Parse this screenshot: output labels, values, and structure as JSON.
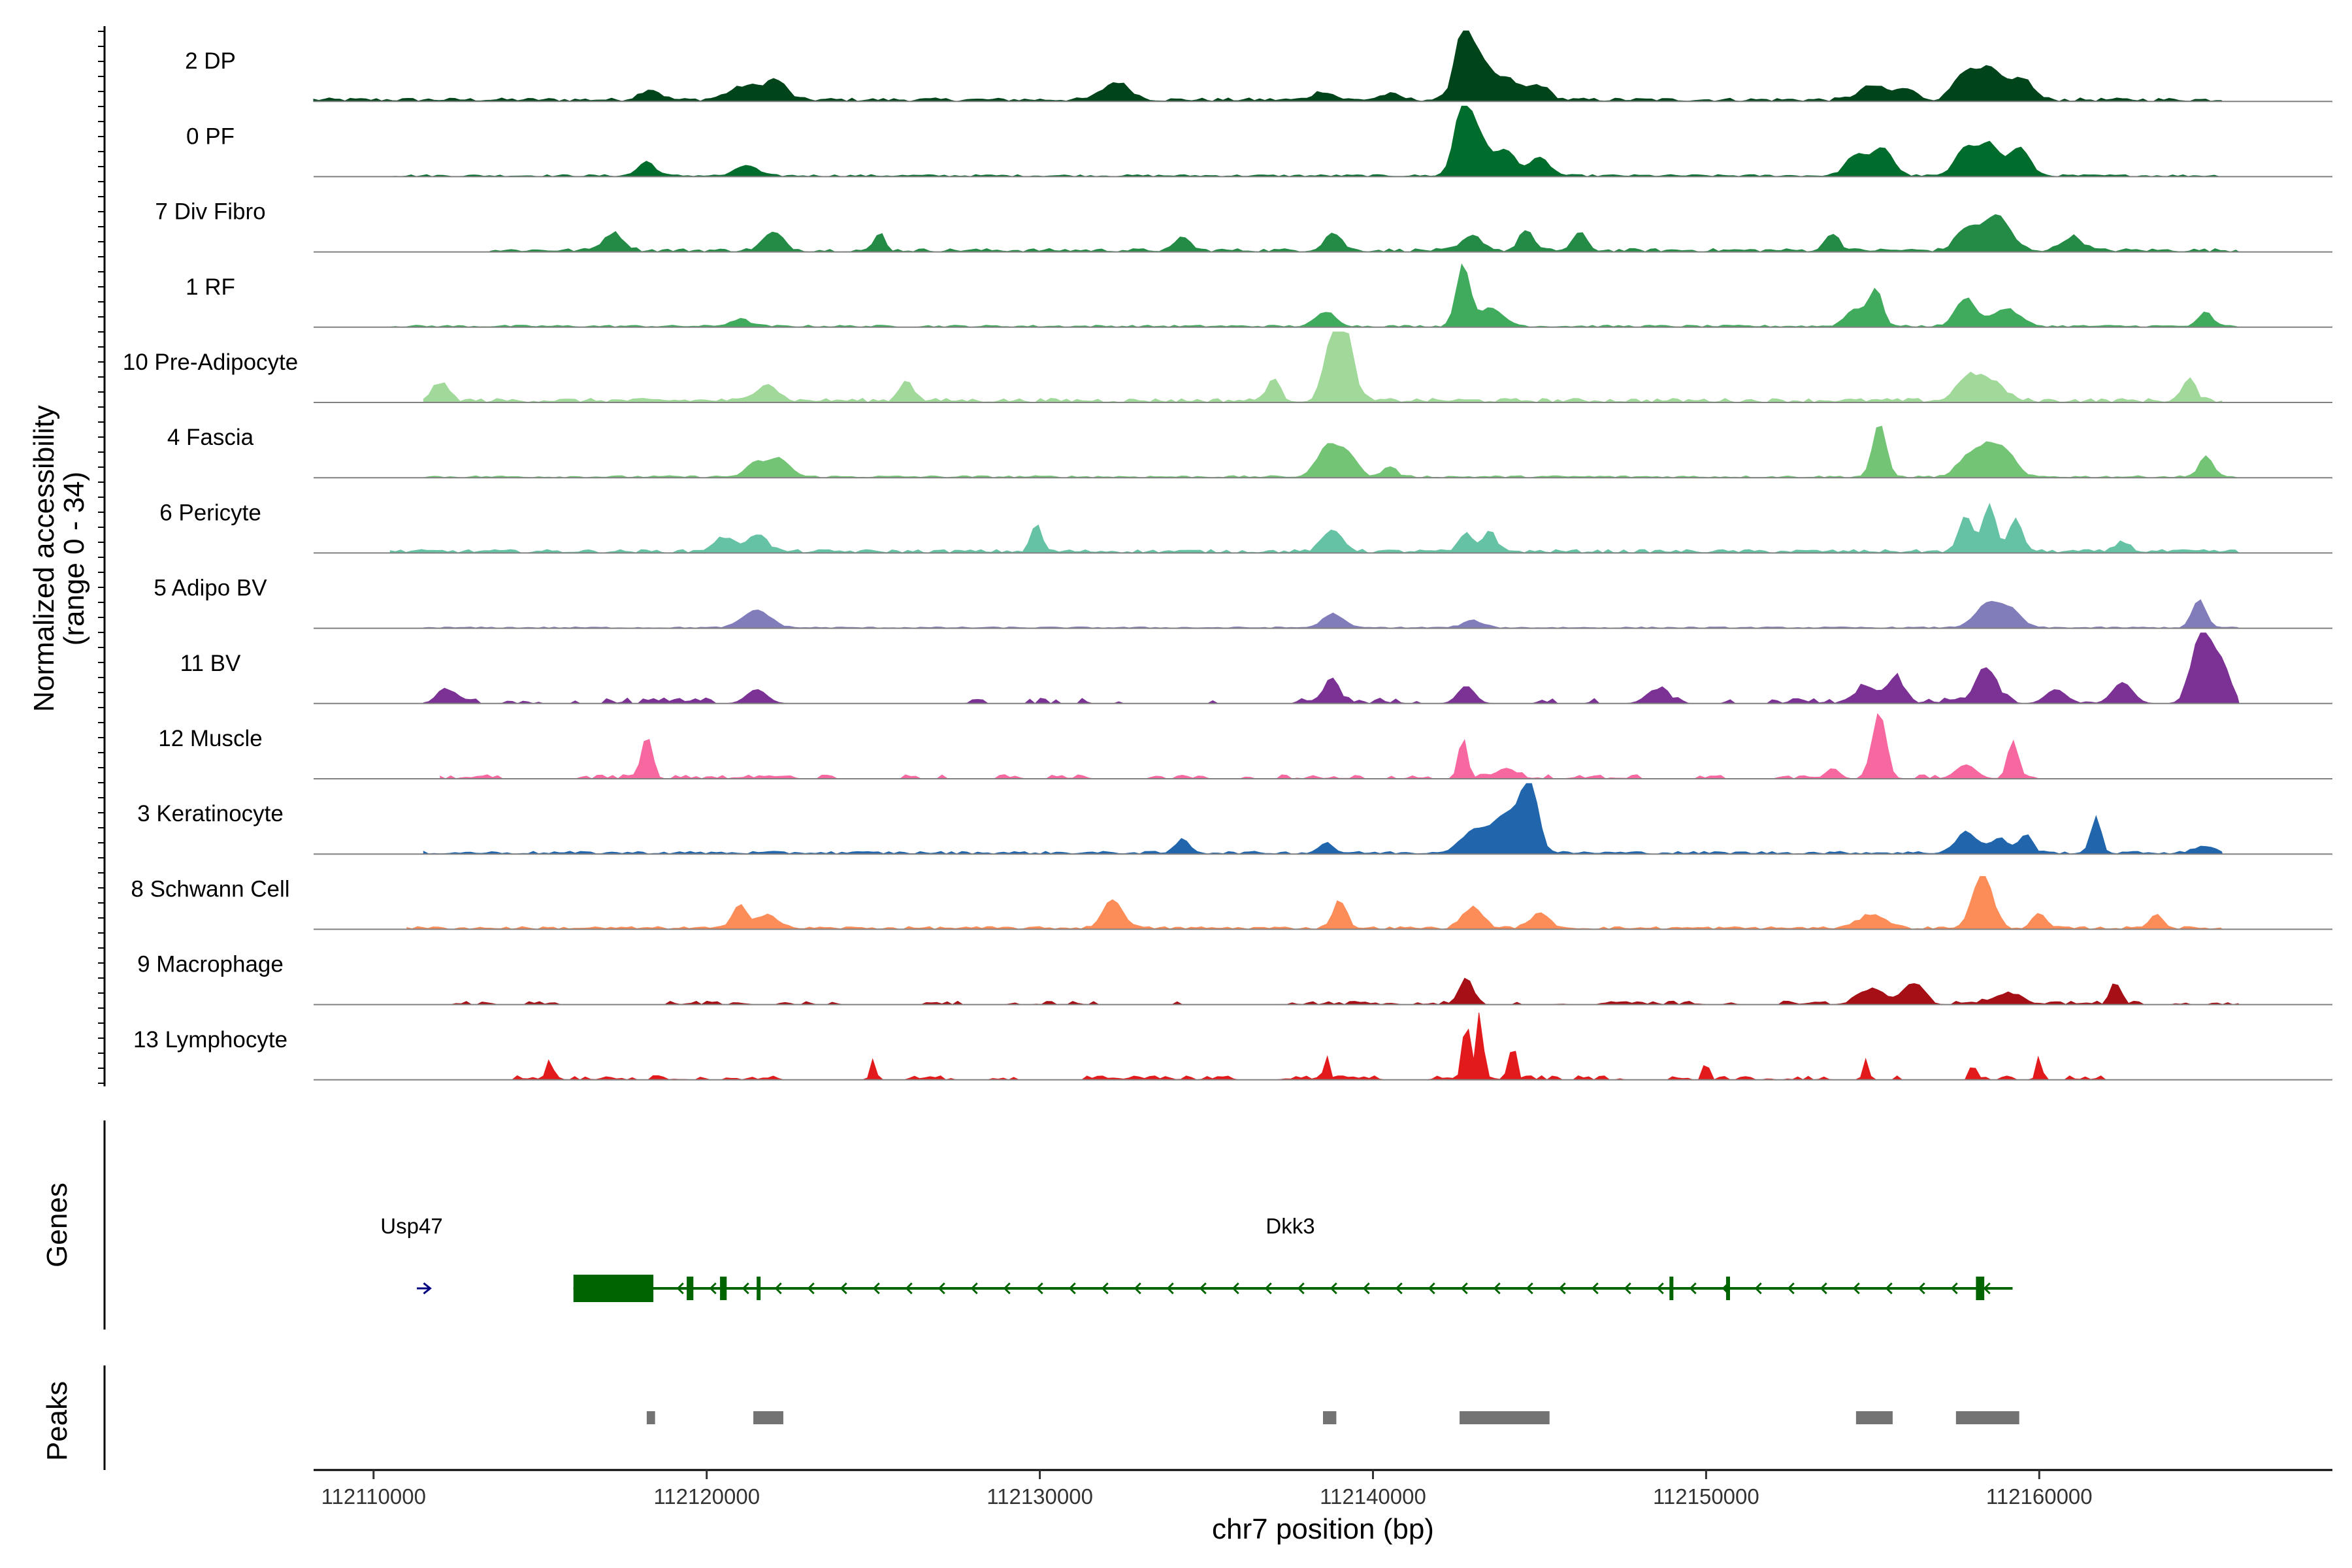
{
  "chart_data": {
    "type": "area",
    "title": "",
    "coverage_ylabel": "Normalized accessibility\n(range 0 - 34)",
    "y_range": [
      0,
      34
    ],
    "xlabel": "chr7 position (bp)",
    "xlim": [
      112108200,
      112168800
    ],
    "x_ticks": [
      112110000,
      112120000,
      112130000,
      112140000,
      112150000,
      112160000
    ],
    "x_tick_labels": [
      "112110000",
      "112120000",
      "112130000",
      "112140000",
      "112150000",
      "112160000"
    ],
    "tracks": [
      {
        "name": "2 DP",
        "color": "#00441b",
        "range": [
          112108200,
          112165500
        ],
        "noise": 0.05,
        "peaks": [
          [
            112118300,
            0.15,
            300
          ],
          [
            112121200,
            0.2,
            500
          ],
          [
            112122100,
            0.25,
            300
          ],
          [
            112132300,
            0.25,
            400
          ],
          [
            112138500,
            0.12,
            300
          ],
          [
            112140500,
            0.08,
            300
          ],
          [
            112142700,
            0.95,
            250
          ],
          [
            112143200,
            0.5,
            300
          ],
          [
            112144000,
            0.3,
            400
          ],
          [
            112145000,
            0.2,
            300
          ],
          [
            112155000,
            0.2,
            400
          ],
          [
            112156000,
            0.15,
            300
          ],
          [
            112157700,
            0.35,
            300
          ],
          [
            112158500,
            0.45,
            400
          ],
          [
            112159500,
            0.3,
            300
          ]
        ]
      },
      {
        "name": "0 PF",
        "color": "#006d2c",
        "range": [
          112110500,
          112165500
        ],
        "noise": 0.03,
        "peaks": [
          [
            112118200,
            0.2,
            250
          ],
          [
            112121200,
            0.15,
            300
          ],
          [
            112142700,
            1.0,
            250
          ],
          [
            112143200,
            0.5,
            300
          ],
          [
            112144000,
            0.35,
            300
          ],
          [
            112145000,
            0.25,
            300
          ],
          [
            112154500,
            0.3,
            300
          ],
          [
            112155300,
            0.4,
            300
          ],
          [
            112157800,
            0.4,
            300
          ],
          [
            112158500,
            0.45,
            300
          ],
          [
            112159400,
            0.4,
            300
          ]
        ]
      },
      {
        "name": "7 Div Fibro",
        "color": "#238b45",
        "range": [
          112113500,
          112166000
        ],
        "noise": 0.05,
        "peaks": [
          [
            112117200,
            0.25,
            300
          ],
          [
            112122000,
            0.25,
            300
          ],
          [
            112125200,
            0.25,
            150
          ],
          [
            112134300,
            0.2,
            200
          ],
          [
            112138800,
            0.25,
            250
          ],
          [
            112143000,
            0.2,
            300
          ],
          [
            112144600,
            0.3,
            200
          ],
          [
            112146200,
            0.25,
            200
          ],
          [
            112153800,
            0.25,
            200
          ],
          [
            112157800,
            0.3,
            300
          ],
          [
            112158700,
            0.5,
            400
          ],
          [
            112161000,
            0.2,
            300
          ]
        ]
      },
      {
        "name": "1 RF",
        "color": "#41ab5d",
        "range": [
          112110500,
          112166000
        ],
        "noise": 0.03,
        "peaks": [
          [
            112121000,
            0.1,
            300
          ],
          [
            112138600,
            0.2,
            300
          ],
          [
            112142700,
            0.85,
            200
          ],
          [
            112143500,
            0.25,
            400
          ],
          [
            112155100,
            0.5,
            200
          ],
          [
            112154500,
            0.25,
            300
          ],
          [
            112157800,
            0.4,
            300
          ],
          [
            112159000,
            0.25,
            400
          ],
          [
            112165000,
            0.2,
            200
          ]
        ]
      },
      {
        "name": "10 Pre-Adipocyte",
        "color": "#a1d99b",
        "range": [
          112111500,
          112165500
        ],
        "noise": 0.06,
        "peaks": [
          [
            112112000,
            0.25,
            250
          ],
          [
            112121800,
            0.25,
            300
          ],
          [
            112126000,
            0.3,
            200
          ],
          [
            112137000,
            0.3,
            200
          ],
          [
            112138800,
            0.9,
            250
          ],
          [
            112139200,
            0.8,
            250
          ],
          [
            112157800,
            0.3,
            300
          ],
          [
            112158500,
            0.3,
            400
          ],
          [
            112164500,
            0.3,
            200
          ]
        ]
      },
      {
        "name": "4 Fascia",
        "color": "#74c476",
        "range": [
          112111500,
          112166000
        ],
        "noise": 0.03,
        "peaks": [
          [
            112121500,
            0.2,
            300
          ],
          [
            112122200,
            0.25,
            300
          ],
          [
            112138600,
            0.4,
            300
          ],
          [
            112139200,
            0.35,
            300
          ],
          [
            112140500,
            0.15,
            200
          ],
          [
            112155200,
            0.75,
            200
          ],
          [
            112157800,
            0.25,
            300
          ],
          [
            112158400,
            0.4,
            300
          ],
          [
            112159000,
            0.35,
            300
          ],
          [
            112165000,
            0.3,
            200
          ]
        ]
      },
      {
        "name": "6 Pericyte",
        "color": "#66c2a4",
        "range": [
          112110500,
          112166000
        ],
        "noise": 0.05,
        "peaks": [
          [
            112120500,
            0.2,
            300
          ],
          [
            112121500,
            0.25,
            300
          ],
          [
            112129900,
            0.4,
            150
          ],
          [
            112138800,
            0.3,
            300
          ],
          [
            112142800,
            0.25,
            200
          ],
          [
            112143500,
            0.3,
            200
          ],
          [
            112157800,
            0.5,
            200
          ],
          [
            112158500,
            0.65,
            200
          ],
          [
            112159300,
            0.45,
            200
          ],
          [
            112162500,
            0.15,
            200
          ]
        ]
      },
      {
        "name": "5 Adipo BV",
        "color": "#807dba",
        "range": [
          112111500,
          112166000
        ],
        "noise": 0.02,
        "peaks": [
          [
            112121500,
            0.25,
            400
          ],
          [
            112138800,
            0.2,
            300
          ],
          [
            112143000,
            0.1,
            300
          ],
          [
            112158500,
            0.35,
            400
          ],
          [
            112159200,
            0.2,
            300
          ],
          [
            112164800,
            0.4,
            200
          ]
        ]
      },
      {
        "name": "11 BV",
        "color": "#7b3294",
        "range": [
          112111500,
          112166000
        ],
        "noise": 0.08,
        "gappy": true,
        "peaks": [
          [
            112112200,
            0.15,
            300
          ],
          [
            112121500,
            0.2,
            300
          ],
          [
            112138800,
            0.35,
            200
          ],
          [
            112142800,
            0.25,
            250
          ],
          [
            112148500,
            0.2,
            300
          ],
          [
            112154800,
            0.25,
            300
          ],
          [
            112155700,
            0.4,
            200
          ],
          [
            112158400,
            0.5,
            300
          ],
          [
            112160500,
            0.2,
            300
          ],
          [
            112162500,
            0.3,
            300
          ],
          [
            112164900,
            1.0,
            300
          ],
          [
            112165500,
            0.5,
            250
          ]
        ]
      },
      {
        "name": "12 Muscle",
        "color": "#f768a1",
        "range": [
          112112000,
          112160000
        ],
        "noise": 0.06,
        "gappy": true,
        "peaks": [
          [
            112118200,
            0.6,
            150
          ],
          [
            112142700,
            0.55,
            120
          ],
          [
            112155200,
            0.9,
            200
          ],
          [
            112159200,
            0.55,
            150
          ],
          [
            112157800,
            0.2,
            300
          ],
          [
            112144000,
            0.15,
            300
          ],
          [
            112153800,
            0.15,
            200
          ]
        ]
      },
      {
        "name": "3 Keratinocyte",
        "color": "#2166ac",
        "range": [
          112111500,
          112165500
        ],
        "noise": 0.04,
        "peaks": [
          [
            112134300,
            0.2,
            200
          ],
          [
            112138600,
            0.15,
            200
          ],
          [
            112143000,
            0.3,
            400
          ],
          [
            112144000,
            0.55,
            400
          ],
          [
            112144700,
            1.0,
            250
          ],
          [
            112157800,
            0.3,
            300
          ],
          [
            112158800,
            0.2,
            300
          ],
          [
            112159600,
            0.25,
            200
          ],
          [
            112161700,
            0.5,
            150
          ],
          [
            112165000,
            0.1,
            300
          ]
        ]
      },
      {
        "name": "8 Schwann Cell",
        "color": "#fc8d59",
        "range": [
          112111000,
          112165500
        ],
        "noise": 0.04,
        "peaks": [
          [
            112121000,
            0.35,
            200
          ],
          [
            112121800,
            0.2,
            300
          ],
          [
            112132200,
            0.4,
            300
          ],
          [
            112139000,
            0.4,
            200
          ],
          [
            112143000,
            0.3,
            300
          ],
          [
            112145000,
            0.2,
            300
          ],
          [
            112155000,
            0.2,
            400
          ],
          [
            112158300,
            0.75,
            300
          ],
          [
            112160000,
            0.2,
            200
          ],
          [
            112163500,
            0.2,
            200
          ]
        ]
      },
      {
        "name": "9 Macrophage",
        "color": "#a50f15",
        "range": [
          112112000,
          112166000
        ],
        "noise": 0.05,
        "gappy": true,
        "peaks": [
          [
            112142800,
            0.35,
            200
          ],
          [
            112156200,
            0.3,
            300
          ],
          [
            112155000,
            0.2,
            400
          ],
          [
            112159000,
            0.15,
            400
          ],
          [
            112162300,
            0.3,
            150
          ]
        ]
      },
      {
        "name": "13 Lymphocyte",
        "color": "#e31a1c",
        "range": [
          112114000,
          112162000
        ],
        "noise": 0.06,
        "gappy": true,
        "peaks": [
          [
            112142800,
            0.85,
            100
          ],
          [
            112143200,
            0.95,
            100
          ],
          [
            112144200,
            0.5,
            100
          ],
          [
            112125000,
            0.3,
            80
          ],
          [
            112138600,
            0.3,
            80
          ],
          [
            112150000,
            0.3,
            80
          ],
          [
            112160000,
            0.35,
            80
          ],
          [
            112154800,
            0.3,
            80
          ],
          [
            112115300,
            0.3,
            80
          ],
          [
            112158000,
            0.25,
            80
          ]
        ]
      }
    ],
    "genes_label": "Genes",
    "genes": [
      {
        "name": "Usp47",
        "strand": "+",
        "start": 112111300,
        "end": 112111700,
        "color": "#000080",
        "exons": []
      },
      {
        "name": "Dkk3",
        "strand": "-",
        "start": 112116000,
        "end": 112159200,
        "color": "#006400",
        "exons": [
          [
            112116000,
            112118400
          ],
          [
            112119400,
            112119600
          ],
          [
            112120400,
            112120600
          ],
          [
            112121500,
            112121550
          ],
          [
            112148900,
            112149000
          ],
          [
            112150600,
            112150700
          ],
          [
            112158100,
            112158350
          ]
        ]
      }
    ],
    "peaks_label": "Peaks",
    "peak_regions": [
      [
        112118200,
        112118450
      ],
      [
        112121400,
        112122300
      ],
      [
        112138500,
        112138900
      ],
      [
        112142600,
        112145300
      ],
      [
        112154500,
        112155600
      ],
      [
        112157500,
        112159400
      ]
    ]
  }
}
